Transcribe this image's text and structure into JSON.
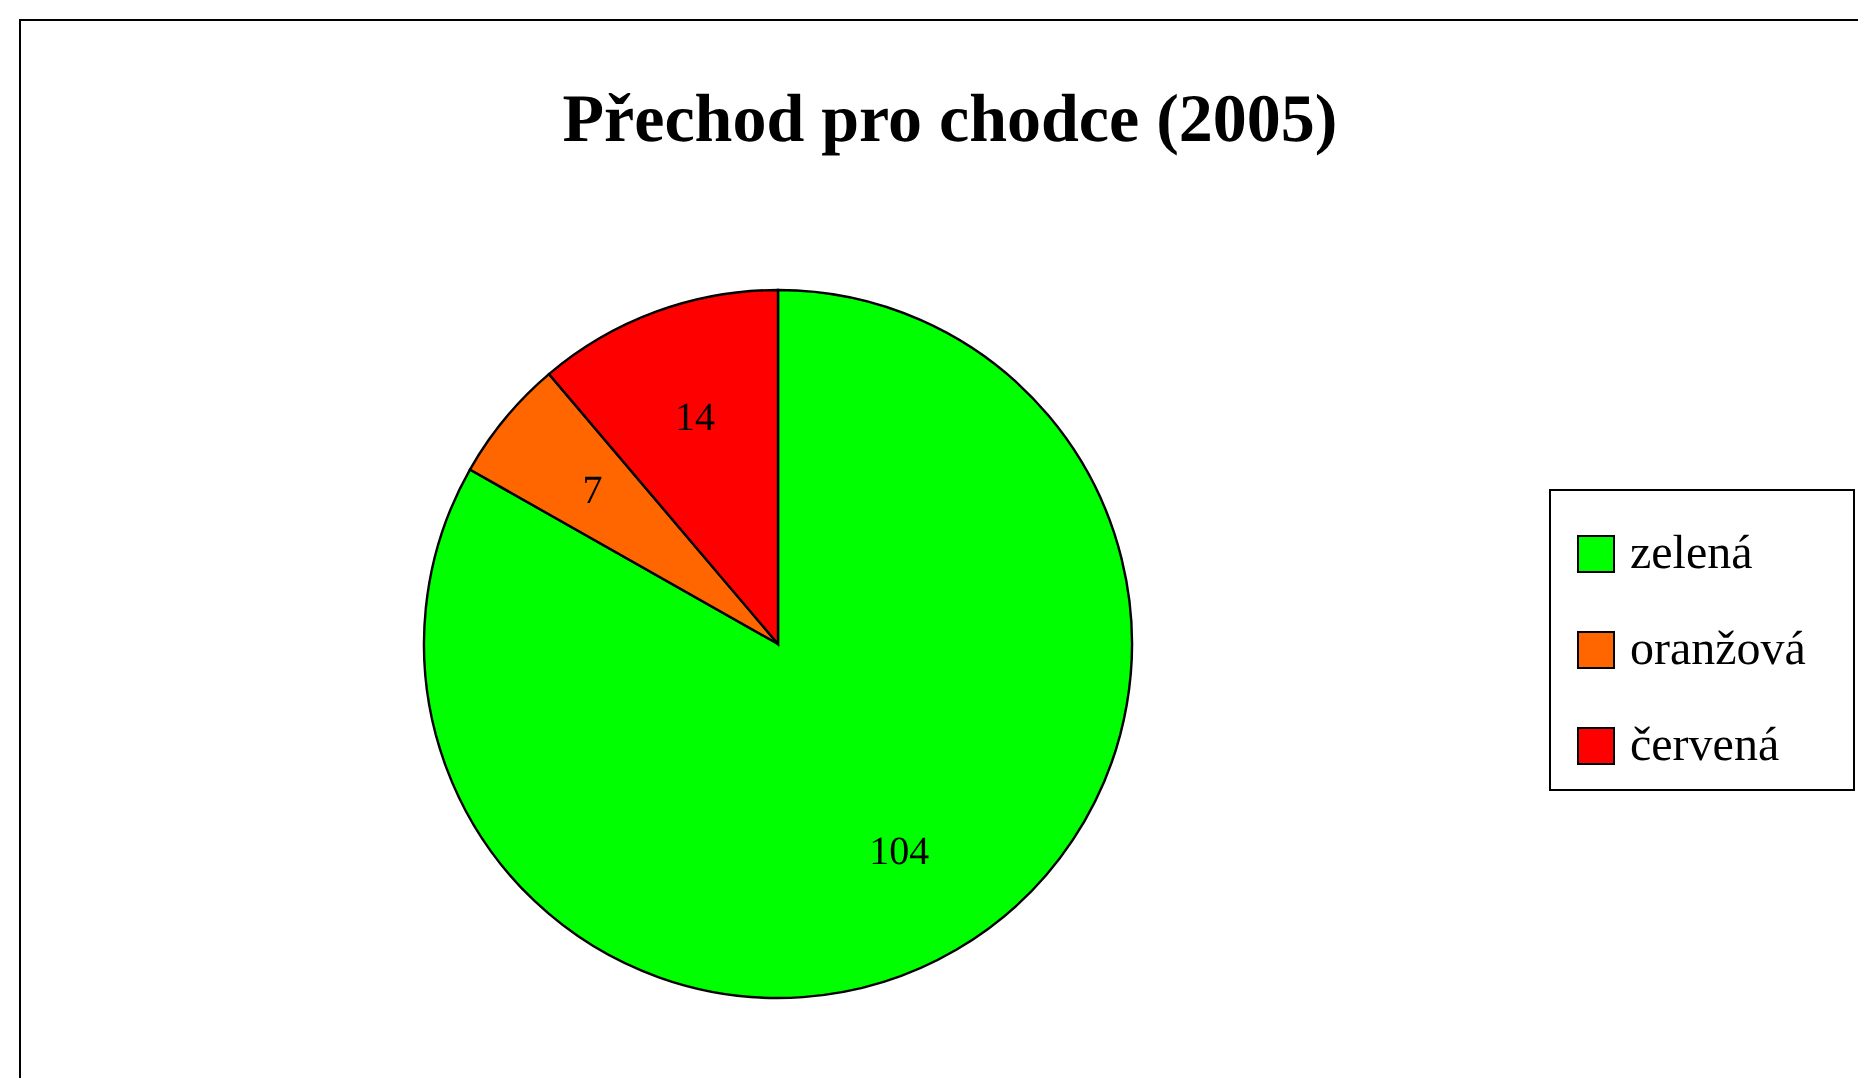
{
  "chart_data": {
    "type": "pie",
    "title": "Přechod pro chodce (2005)",
    "categories": [
      "zelená",
      "oranžová",
      "červená"
    ],
    "values": [
      104,
      7,
      14
    ],
    "colors": [
      "#00ff00",
      "#ff6600",
      "#ff0000"
    ],
    "data_labels": true,
    "legend": "right"
  }
}
